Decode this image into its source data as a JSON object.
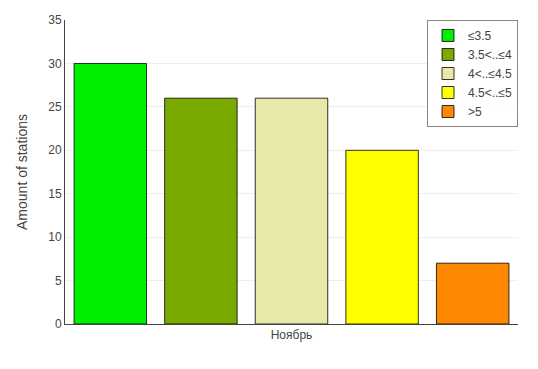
{
  "chart_data": {
    "type": "bar",
    "categories": [
      "Ноябрь"
    ],
    "series": [
      {
        "name": "≤3.5",
        "color": "#00ee00",
        "values": [
          30
        ]
      },
      {
        "name": "3.5<..≤4",
        "color": "#7aaa00",
        "values": [
          26
        ]
      },
      {
        "name": "4<..≤4.5",
        "color": "#e8e8aa",
        "values": [
          26
        ]
      },
      {
        "name": "4.5<..≤5",
        "color": "#ffff00",
        "values": [
          20
        ]
      },
      {
        "name": ">5",
        "color": "#ff8800",
        "values": [
          7
        ]
      }
    ],
    "ylabel": "Amount of stations",
    "ylim": [
      0,
      35
    ],
    "yticks": [
      0,
      5,
      10,
      15,
      20,
      25,
      30,
      35
    ],
    "grid": true,
    "legend": "upper right"
  }
}
